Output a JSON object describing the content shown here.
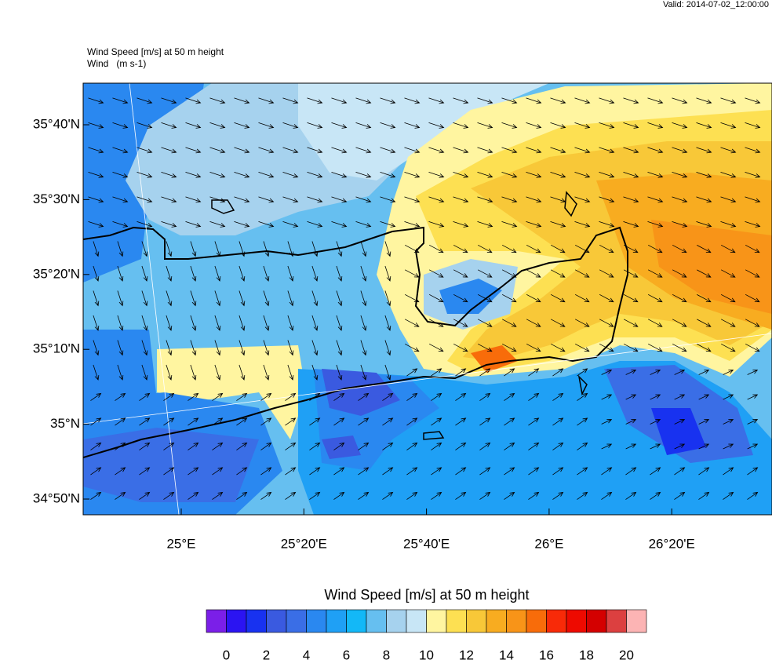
{
  "header": {
    "valid": "Valid: 2014-07-02_12:00:00"
  },
  "map": {
    "title": "Wind Speed [m/s] at 50 m height",
    "subtitle": "Wind   (m s-1)",
    "lat_labels": [
      "35°40'N",
      "35°30'N",
      "35°20'N",
      "35°10'N",
      "35°N",
      "34°50'N"
    ],
    "lon_labels": [
      "25°E",
      "25°20'E",
      "25°40'E",
      "26°E",
      "26°20'E"
    ]
  },
  "colorbar": {
    "title": "Wind Speed [m/s] at 50 m height",
    "ticks": [
      0,
      2,
      4,
      6,
      8,
      10,
      12,
      14,
      16,
      18,
      20
    ],
    "colors": [
      "#7b1fe8",
      "#2b14f2",
      "#1832f0",
      "#3a5ae0",
      "#3a6ee6",
      "#2a88f0",
      "#1fa0f5",
      "#13b8f7",
      "#66bff0",
      "#a6d2ee",
      "#c8e6f6",
      "#fff5a0",
      "#fde052",
      "#f8c838",
      "#f8ac20",
      "#f89418",
      "#f86c0a",
      "#f82a08",
      "#ee0a00",
      "#d40000",
      "#dc4040",
      "#fcb4b4"
    ]
  }
}
